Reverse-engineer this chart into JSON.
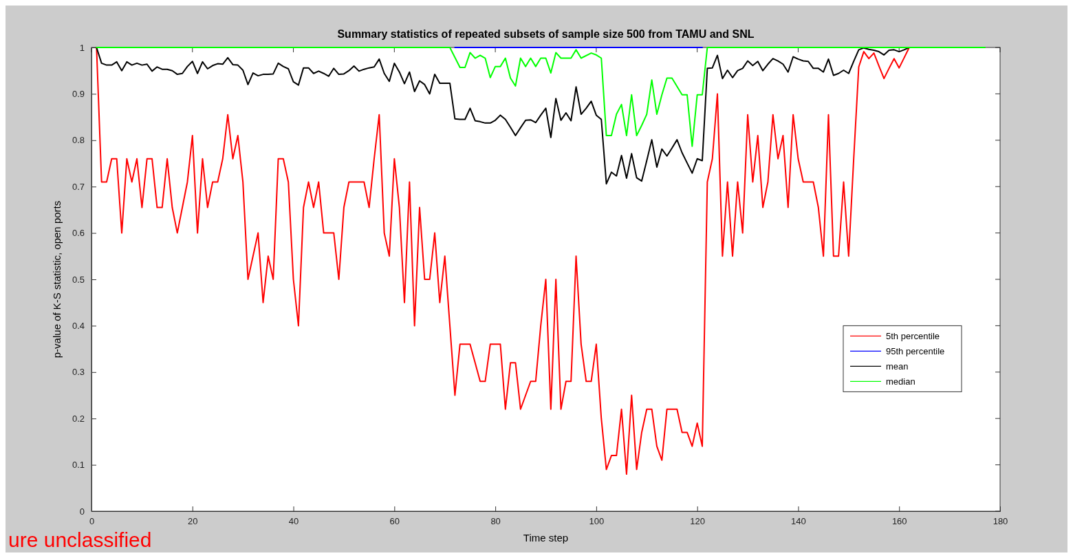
{
  "chart_data": {
    "type": "line",
    "title": "Summary statistics of repeated subsets of sample size 500 from TAMU and SNL",
    "xlabel": "Time step",
    "ylabel": "p-value of K-S statistic, open ports",
    "annotations": [
      "ure unclassified"
    ],
    "x": [
      1,
      2,
      3,
      4,
      5,
      6,
      7,
      8,
      9,
      10,
      11,
      12,
      13,
      14,
      15,
      16,
      17,
      18,
      19,
      20,
      21,
      22,
      23,
      24,
      25,
      26,
      27,
      28,
      29,
      30,
      31,
      32,
      33,
      34,
      35,
      36,
      37,
      38,
      39,
      40,
      41,
      42,
      43,
      44,
      45,
      46,
      47,
      48,
      49,
      50,
      51,
      52,
      53,
      54,
      55,
      56,
      57,
      58,
      59,
      60,
      61,
      62,
      63,
      64,
      65,
      66,
      67,
      68,
      69,
      70,
      71,
      72,
      73,
      74,
      75,
      76,
      77,
      78,
      79,
      80,
      81,
      82,
      83,
      84,
      85,
      86,
      87,
      88,
      89,
      90,
      91,
      92,
      93,
      94,
      95,
      96,
      97,
      98,
      99,
      100,
      101,
      102,
      103,
      104,
      105,
      106,
      107,
      108,
      109,
      110,
      111,
      112,
      113,
      114,
      115,
      116,
      117,
      118,
      119,
      120,
      121,
      122,
      123,
      124,
      125,
      126,
      127,
      128,
      129,
      130,
      131,
      132,
      133,
      134,
      135,
      136,
      137,
      138,
      139,
      140,
      141,
      142,
      143,
      144,
      145,
      146,
      147,
      148,
      149,
      150,
      151,
      152,
      153,
      154,
      155,
      156,
      157,
      158,
      159,
      160,
      161,
      162
    ],
    "series": [
      {
        "name": "5th percentile",
        "color": "#ff0000",
        "values": [
          1.0,
          0.71,
          0.71,
          0.76,
          0.76,
          0.6,
          0.76,
          0.71,
          0.76,
          0.655,
          0.76,
          0.76,
          0.655,
          0.655,
          0.76,
          0.655,
          0.6,
          0.655,
          0.71,
          0.81,
          0.6,
          0.76,
          0.655,
          0.71,
          0.71,
          0.76,
          0.855,
          0.76,
          0.81,
          0.71,
          0.5,
          0.55,
          0.6,
          0.45,
          0.55,
          0.5,
          0.76,
          0.76,
          0.71,
          0.5,
          0.4,
          0.655,
          0.71,
          0.655,
          0.71,
          0.6,
          0.6,
          0.6,
          0.5,
          0.655,
          0.71,
          0.71,
          0.71,
          0.71,
          0.655,
          0.76,
          0.855,
          0.6,
          0.55,
          0.76,
          0.655,
          0.45,
          0.71,
          0.4,
          0.655,
          0.5,
          0.5,
          0.6,
          0.45,
          0.55,
          0.4,
          0.25,
          0.36,
          0.36,
          0.36,
          0.32,
          0.28,
          0.28,
          0.36,
          0.36,
          0.36,
          0.22,
          0.32,
          0.32,
          0.22,
          0.25,
          0.28,
          0.28,
          0.4,
          0.5,
          0.22,
          0.5,
          0.22,
          0.28,
          0.28,
          0.55,
          0.36,
          0.28,
          0.28,
          0.36,
          0.2,
          0.09,
          0.12,
          0.12,
          0.22,
          0.08,
          0.25,
          0.09,
          0.17,
          0.22,
          0.22,
          0.14,
          0.11,
          0.22,
          0.22,
          0.22,
          0.17,
          0.17,
          0.14,
          0.19,
          0.14,
          0.71,
          0.76,
          0.9,
          0.55,
          0.71,
          0.55,
          0.71,
          0.6,
          0.855,
          0.71,
          0.81,
          0.655,
          0.71,
          0.855,
          0.76,
          0.81,
          0.655,
          0.855,
          0.76,
          0.71,
          0.71,
          0.71,
          0.655,
          0.55,
          0.855,
          0.55,
          0.55,
          0.71,
          0.55,
          0.76,
          0.958,
          0.991,
          0.976,
          0.988,
          0.96,
          0.933,
          0.955,
          0.976,
          0.956,
          0.978,
          1.0
        ]
      },
      {
        "name": "95th percentile",
        "color": "#0000ff",
        "x": [
          72,
          121
        ],
        "values": [
          1.0,
          1.0
        ]
      },
      {
        "name": "mean",
        "color": "#000000",
        "values": [
          1.0,
          0.966,
          0.962,
          0.962,
          0.969,
          0.95,
          0.969,
          0.962,
          0.966,
          0.962,
          0.964,
          0.949,
          0.958,
          0.953,
          0.953,
          0.95,
          0.942,
          0.944,
          0.959,
          0.97,
          0.944,
          0.969,
          0.954,
          0.961,
          0.965,
          0.964,
          0.978,
          0.963,
          0.962,
          0.951,
          0.92,
          0.945,
          0.939,
          0.942,
          0.942,
          0.943,
          0.966,
          0.959,
          0.954,
          0.926,
          0.919,
          0.956,
          0.956,
          0.944,
          0.949,
          0.944,
          0.938,
          0.955,
          0.942,
          0.943,
          0.95,
          0.96,
          0.949,
          0.953,
          0.956,
          0.958,
          0.975,
          0.944,
          0.927,
          0.966,
          0.947,
          0.922,
          0.947,
          0.905,
          0.928,
          0.92,
          0.9,
          0.942,
          0.923,
          0.923,
          0.923,
          0.846,
          0.845,
          0.845,
          0.869,
          0.842,
          0.84,
          0.837,
          0.837,
          0.843,
          0.854,
          0.845,
          0.828,
          0.81,
          0.827,
          0.843,
          0.844,
          0.838,
          0.854,
          0.869,
          0.806,
          0.89,
          0.843,
          0.859,
          0.842,
          0.915,
          0.856,
          0.869,
          0.884,
          0.854,
          0.845,
          0.706,
          0.731,
          0.723,
          0.767,
          0.718,
          0.771,
          0.719,
          0.712,
          0.756,
          0.801,
          0.742,
          0.781,
          0.766,
          0.783,
          0.801,
          0.773,
          0.751,
          0.729,
          0.76,
          0.756,
          0.955,
          0.956,
          0.983,
          0.933,
          0.951,
          0.935,
          0.95,
          0.955,
          0.971,
          0.961,
          0.97,
          0.95,
          0.964,
          0.976,
          0.971,
          0.964,
          0.947,
          0.98,
          0.975,
          0.971,
          0.97,
          0.955,
          0.955,
          0.947,
          0.975,
          0.94,
          0.944,
          0.951,
          0.944,
          0.97,
          0.995,
          0.999,
          0.996,
          0.994,
          0.991,
          0.984,
          0.994,
          0.995,
          0.991,
          0.995,
          1.0
        ]
      },
      {
        "name": "median",
        "color": "#00ff00",
        "x": [
          1,
          71,
          73,
          74,
          75,
          76,
          77,
          78,
          79,
          80,
          81,
          82,
          83,
          84,
          85,
          86,
          87,
          88,
          89,
          90,
          91,
          92,
          93,
          95,
          96,
          97,
          99,
          100,
          101,
          102,
          103,
          104,
          105,
          106,
          107,
          108,
          109,
          110,
          111,
          112,
          113,
          114,
          115,
          117,
          118,
          119,
          120,
          121,
          122,
          177
        ],
        "values": [
          1.0,
          1.0,
          0.957,
          0.957,
          0.989,
          0.977,
          0.983,
          0.977,
          0.935,
          0.959,
          0.959,
          0.977,
          0.934,
          0.917,
          0.977,
          0.959,
          0.977,
          0.959,
          0.977,
          0.977,
          0.945,
          0.989,
          0.977,
          0.977,
          0.995,
          0.977,
          0.988,
          0.984,
          0.977,
          0.81,
          0.81,
          0.856,
          0.877,
          0.81,
          0.898,
          0.81,
          0.832,
          0.856,
          0.93,
          0.856,
          0.898,
          0.934,
          0.934,
          0.898,
          0.898,
          0.787,
          0.898,
          0.898,
          1.0,
          1.0
        ]
      }
    ],
    "xlim": [
      0,
      180
    ],
    "xticks": [
      0,
      20,
      40,
      60,
      80,
      100,
      120,
      140,
      160,
      180
    ],
    "ylim": [
      0,
      1
    ],
    "yticks": [
      0,
      0.1,
      0.2,
      0.3,
      0.4,
      0.5,
      0.6,
      0.7,
      0.8,
      0.9,
      1
    ],
    "legend": "right",
    "line_style": "solid",
    "marker": "none"
  }
}
